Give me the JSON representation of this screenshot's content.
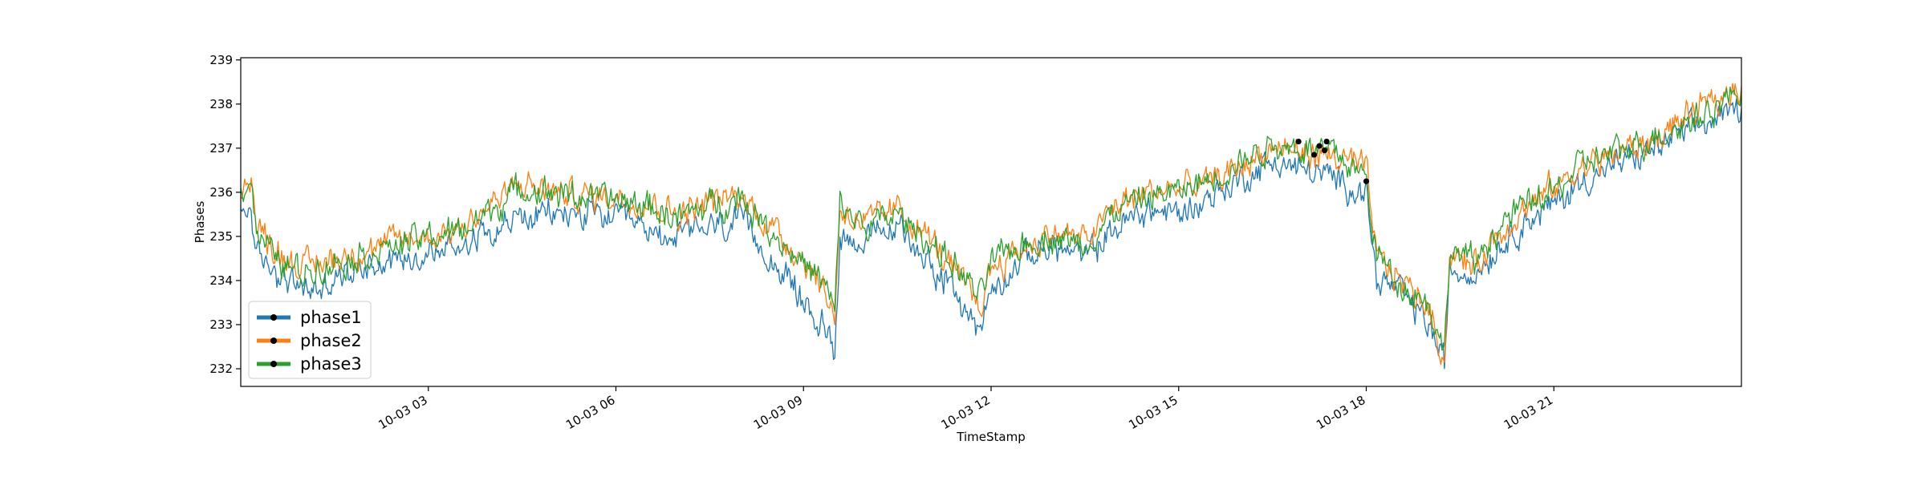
{
  "chart_data": {
    "type": "line",
    "xlabel": "TimeStamp",
    "ylabel": "Phases",
    "x_range": [
      "10-03 00:00",
      "10-04 00:00"
    ],
    "ylim": [
      231.6,
      239.05
    ],
    "y_ticks": [
      232,
      233,
      234,
      235,
      236,
      237,
      238,
      239
    ],
    "x_ticks": [
      {
        "t": "10-03 03:00",
        "label": "10-03 03"
      },
      {
        "t": "10-03 06:00",
        "label": "10-03 06"
      },
      {
        "t": "10-03 09:00",
        "label": "10-03 09"
      },
      {
        "t": "10-03 12:00",
        "label": "10-03 12"
      },
      {
        "t": "10-03 15:00",
        "label": "10-03 15"
      },
      {
        "t": "10-03 18:00",
        "label": "10-03 18"
      },
      {
        "t": "10-03 21:00",
        "label": "10-03 21"
      }
    ],
    "grid": false,
    "legend_position": "lower-left",
    "series": [
      {
        "name": "phase1",
        "color": "#1f77b4",
        "points": [
          [
            "10-03 00:00",
            235.4
          ],
          [
            "10-03 00:10",
            235.7
          ],
          [
            "10-03 00:15",
            234.5
          ],
          [
            "10-03 00:30",
            234.3
          ],
          [
            "10-03 00:45",
            234.0
          ],
          [
            "10-03 01:00",
            233.8
          ],
          [
            "10-03 01:15",
            233.8
          ],
          [
            "10-03 01:30",
            234.0
          ],
          [
            "10-03 02:00",
            234.4
          ],
          [
            "10-03 02:30",
            234.5
          ],
          [
            "10-03 03:00",
            234.6
          ],
          [
            "10-03 03:30",
            234.8
          ],
          [
            "10-03 04:00",
            235.2
          ],
          [
            "10-03 04:30",
            235.4
          ],
          [
            "10-03 05:00",
            235.5
          ],
          [
            "10-03 05:30",
            235.5
          ],
          [
            "10-03 06:00",
            235.4
          ],
          [
            "10-03 06:30",
            235.1
          ],
          [
            "10-03 07:00",
            235.0
          ],
          [
            "10-03 07:30",
            235.2
          ],
          [
            "10-03 08:00",
            235.3
          ],
          [
            "10-03 08:30",
            234.5
          ],
          [
            "10-03 09:00",
            233.5
          ],
          [
            "10-03 09:20",
            232.9
          ],
          [
            "10-03 09:30",
            232.5
          ],
          [
            "10-03 09:35",
            235.0
          ],
          [
            "10-03 10:00",
            234.9
          ],
          [
            "10-03 10:30",
            235.2
          ],
          [
            "10-03 11:00",
            234.5
          ],
          [
            "10-03 11:30",
            233.5
          ],
          [
            "10-03 11:50",
            232.9
          ],
          [
            "10-03 12:00",
            233.8
          ],
          [
            "10-03 12:30",
            234.5
          ],
          [
            "10-03 13:00",
            234.8
          ],
          [
            "10-03 13:30",
            234.5
          ],
          [
            "10-03 14:00",
            235.2
          ],
          [
            "10-03 14:30",
            235.6
          ],
          [
            "10-03 15:00",
            235.5
          ],
          [
            "10-03 15:30",
            235.9
          ],
          [
            "10-03 16:00",
            236.3
          ],
          [
            "10-03 16:30",
            236.7
          ],
          [
            "10-03 17:00",
            236.5
          ],
          [
            "10-03 17:30",
            236.3
          ],
          [
            "10-03 18:00",
            236.0
          ],
          [
            "10-03 18:10",
            234.0
          ],
          [
            "10-03 18:30",
            233.8
          ],
          [
            "10-03 19:00",
            233.0
          ],
          [
            "10-03 19:15",
            232.1
          ],
          [
            "10-03 19:20",
            234.2
          ],
          [
            "10-03 19:45",
            234.2
          ],
          [
            "10-03 20:00",
            234.6
          ],
          [
            "10-03 20:30",
            235.3
          ],
          [
            "10-03 21:00",
            235.7
          ],
          [
            "10-03 21:30",
            236.3
          ],
          [
            "10-03 22:00",
            236.6
          ],
          [
            "10-03 22:30",
            236.9
          ],
          [
            "10-03 23:00",
            237.3
          ],
          [
            "10-03 23:30",
            237.6
          ],
          [
            "10-04 00:00",
            237.9
          ]
        ]
      },
      {
        "name": "phase2",
        "color": "#ff7f0e",
        "points": [
          [
            "10-03 00:00",
            236.1
          ],
          [
            "10-03 00:10",
            236.4
          ],
          [
            "10-03 00:15",
            235.2
          ],
          [
            "10-03 00:30",
            234.8
          ],
          [
            "10-03 00:45",
            234.5
          ],
          [
            "10-03 01:00",
            234.3
          ],
          [
            "10-03 01:15",
            234.4
          ],
          [
            "10-03 01:30",
            234.5
          ],
          [
            "10-03 02:00",
            234.7
          ],
          [
            "10-03 02:30",
            234.9
          ],
          [
            "10-03 03:00",
            235.0
          ],
          [
            "10-03 03:30",
            235.2
          ],
          [
            "10-03 04:00",
            235.7
          ],
          [
            "10-03 04:30",
            236.2
          ],
          [
            "10-03 05:00",
            236.0
          ],
          [
            "10-03 05:30",
            235.9
          ],
          [
            "10-03 06:00",
            235.9
          ],
          [
            "10-03 06:30",
            235.8
          ],
          [
            "10-03 07:00",
            235.5
          ],
          [
            "10-03 07:30",
            235.8
          ],
          [
            "10-03 08:00",
            235.9
          ],
          [
            "10-03 08:30",
            235.2
          ],
          [
            "10-03 09:00",
            234.5
          ],
          [
            "10-03 09:20",
            233.8
          ],
          [
            "10-03 09:30",
            233.2
          ],
          [
            "10-03 09:35",
            235.6
          ],
          [
            "10-03 10:00",
            235.3
          ],
          [
            "10-03 10:30",
            235.6
          ],
          [
            "10-03 11:00",
            235.0
          ],
          [
            "10-03 11:30",
            234.0
          ],
          [
            "10-03 11:50",
            233.4
          ],
          [
            "10-03 12:00",
            234.3
          ],
          [
            "10-03 12:30",
            234.7
          ],
          [
            "10-03 13:00",
            235.1
          ],
          [
            "10-03 13:30",
            234.9
          ],
          [
            "10-03 14:00",
            235.7
          ],
          [
            "10-03 14:30",
            236.0
          ],
          [
            "10-03 15:00",
            236.1
          ],
          [
            "10-03 15:30",
            236.2
          ],
          [
            "10-03 16:00",
            236.6
          ],
          [
            "10-03 16:30",
            237.0
          ],
          [
            "10-03 17:00",
            236.9
          ],
          [
            "10-03 17:30",
            236.8
          ],
          [
            "10-03 18:00",
            236.5
          ],
          [
            "10-03 18:10",
            234.5
          ],
          [
            "10-03 18:30",
            234.1
          ],
          [
            "10-03 19:00",
            233.4
          ],
          [
            "10-03 19:15",
            232.2
          ],
          [
            "10-03 19:20",
            234.6
          ],
          [
            "10-03 19:45",
            234.3
          ],
          [
            "10-03 20:00",
            234.9
          ],
          [
            "10-03 20:30",
            235.6
          ],
          [
            "10-03 21:00",
            236.1
          ],
          [
            "10-03 21:30",
            236.6
          ],
          [
            "10-03 22:00",
            236.9
          ],
          [
            "10-03 22:30",
            237.1
          ],
          [
            "10-03 23:00",
            237.6
          ],
          [
            "10-03 23:30",
            238.0
          ],
          [
            "10-04 00:00",
            238.4
          ]
        ]
      },
      {
        "name": "phase3",
        "color": "#2ca02c",
        "points": [
          [
            "10-03 00:00",
            236.0
          ],
          [
            "10-03 00:10",
            236.3
          ],
          [
            "10-03 00:15",
            235.1
          ],
          [
            "10-03 00:30",
            234.6
          ],
          [
            "10-03 00:45",
            234.3
          ],
          [
            "10-03 01:00",
            234.2
          ],
          [
            "10-03 01:15",
            234.3
          ],
          [
            "10-03 01:30",
            234.4
          ],
          [
            "10-03 02:00",
            234.6
          ],
          [
            "10-03 02:30",
            234.8
          ],
          [
            "10-03 03:00",
            235.0
          ],
          [
            "10-03 03:30",
            235.1
          ],
          [
            "10-03 04:00",
            235.6
          ],
          [
            "10-03 04:30",
            236.1
          ],
          [
            "10-03 05:00",
            236.0
          ],
          [
            "10-03 05:30",
            235.9
          ],
          [
            "10-03 06:00",
            235.8
          ],
          [
            "10-03 06:30",
            235.7
          ],
          [
            "10-03 07:00",
            235.4
          ],
          [
            "10-03 07:30",
            235.7
          ],
          [
            "10-03 08:00",
            235.9
          ],
          [
            "10-03 08:30",
            235.1
          ],
          [
            "10-03 09:00",
            234.4
          ],
          [
            "10-03 09:20",
            233.9
          ],
          [
            "10-03 09:30",
            233.3
          ],
          [
            "10-03 09:35",
            235.7
          ],
          [
            "10-03 10:00",
            235.2
          ],
          [
            "10-03 10:30",
            235.5
          ],
          [
            "10-03 11:00",
            234.9
          ],
          [
            "10-03 11:30",
            234.2
          ],
          [
            "10-03 11:50",
            233.6
          ],
          [
            "10-03 12:00",
            234.4
          ],
          [
            "10-03 12:30",
            234.8
          ],
          [
            "10-03 13:00",
            235.0
          ],
          [
            "10-03 13:30",
            234.8
          ],
          [
            "10-03 14:00",
            235.6
          ],
          [
            "10-03 14:30",
            235.9
          ],
          [
            "10-03 15:00",
            236.0
          ],
          [
            "10-03 15:30",
            236.3
          ],
          [
            "10-03 16:00",
            236.7
          ],
          [
            "10-03 16:30",
            237.1
          ],
          [
            "10-03 17:00",
            237.0
          ],
          [
            "10-03 17:30",
            236.9
          ],
          [
            "10-03 18:00",
            236.3
          ],
          [
            "10-03 18:10",
            234.6
          ],
          [
            "10-03 18:30",
            234.0
          ],
          [
            "10-03 19:00",
            233.5
          ],
          [
            "10-03 19:15",
            232.3
          ],
          [
            "10-03 19:20",
            234.7
          ],
          [
            "10-03 19:45",
            234.4
          ],
          [
            "10-03 20:00",
            235.0
          ],
          [
            "10-03 20:30",
            235.7
          ],
          [
            "10-03 21:00",
            236.0
          ],
          [
            "10-03 21:30",
            236.7
          ],
          [
            "10-03 22:00",
            236.9
          ],
          [
            "10-03 22:30",
            237.2
          ],
          [
            "10-03 23:00",
            237.5
          ],
          [
            "10-03 23:30",
            237.9
          ],
          [
            "10-04 00:00",
            238.3
          ]
        ]
      }
    ],
    "markers": [
      {
        "t": "10-03 16:55",
        "y": 237.15
      },
      {
        "t": "10-03 17:10",
        "y": 236.85
      },
      {
        "t": "10-03 17:15",
        "y": 237.05
      },
      {
        "t": "10-03 17:20",
        "y": 236.95
      },
      {
        "t": "10-03 17:22",
        "y": 237.15
      },
      {
        "t": "10-03 18:00",
        "y": 236.25
      }
    ],
    "colors": {
      "marker": "#000000",
      "axis": "#000000"
    }
  }
}
